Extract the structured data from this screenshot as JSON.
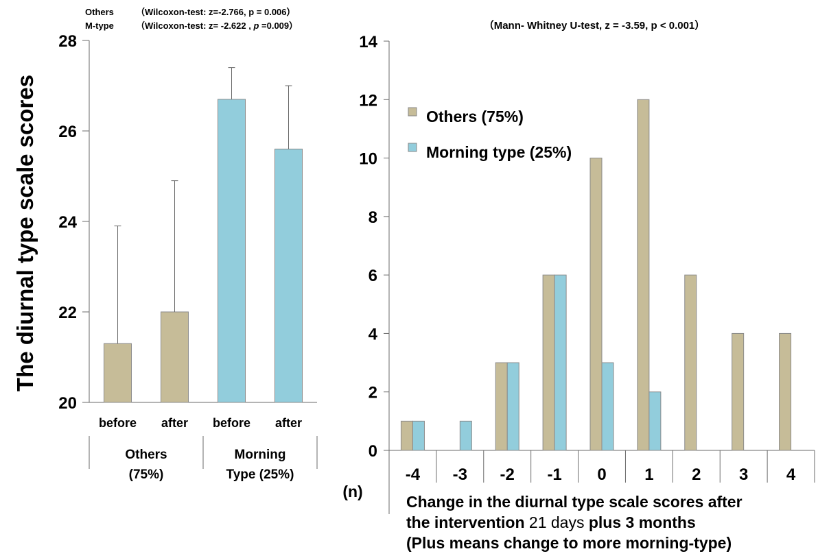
{
  "chart_data": [
    {
      "type": "bar",
      "ylabel": "The diurnal type scale scores",
      "ylim": [
        20,
        28
      ],
      "yticks": [
        20,
        22,
        24,
        26,
        28
      ],
      "stats_lines": [
        {
          "group": "Others",
          "test": "（Wilcoxon-test: z=-2.766, p = 0.006）"
        },
        {
          "group": "M-type",
          "test_a": "（Wilcoxon-test: z= -2.622 , ",
          "test_p": "p",
          "test_b": " =0.009）"
        }
      ],
      "categories": [
        "before",
        "after",
        "before",
        "after"
      ],
      "groups": [
        {
          "label_line1": "Others",
          "label_line2": "(75%)"
        },
        {
          "label_line1": "Morning",
          "label_line2": "Type (25%)"
        }
      ],
      "values": [
        21.3,
        22.0,
        26.7,
        25.6
      ],
      "error_upper": [
        23.9,
        24.9,
        27.4,
        27.0
      ],
      "bar_colors": [
        "#c6bc98",
        "#c6bc98",
        "#92cddc",
        "#92cddc"
      ],
      "grid": false
    },
    {
      "type": "bar",
      "title": "（Mann- Whitney U-test, z = -3.59, p < 0.001）",
      "ylim": [
        0,
        14
      ],
      "yticks": [
        0,
        2,
        4,
        6,
        8,
        10,
        12,
        14
      ],
      "y_unit": "(n)",
      "categories": [
        "-4",
        "-3",
        "-2",
        "-1",
        "0",
        "1",
        "2",
        "3",
        "4"
      ],
      "xlabel_lines": [
        [
          {
            "t": "Change in the diurnal type scale scores after",
            "b": true
          }
        ],
        [
          {
            "t": "the intervention ",
            "b": true
          },
          {
            "t": "21 days ",
            "b": false
          },
          {
            "t": "plus 3 months",
            "b": true
          }
        ],
        [
          {
            "t": "(Plus means change to more morning-type)",
            "b": true
          }
        ]
      ],
      "series": [
        {
          "name": "Others (75%)",
          "color": "#c6bc98",
          "values": [
            1,
            0,
            3,
            6,
            10,
            12,
            6,
            4,
            4
          ]
        },
        {
          "name": "Morning type (25%)",
          "color": "#92cddc",
          "values": [
            1,
            1,
            3,
            6,
            3,
            2,
            0,
            0,
            0
          ]
        }
      ],
      "legend_position": "top-left",
      "grid": false
    }
  ]
}
